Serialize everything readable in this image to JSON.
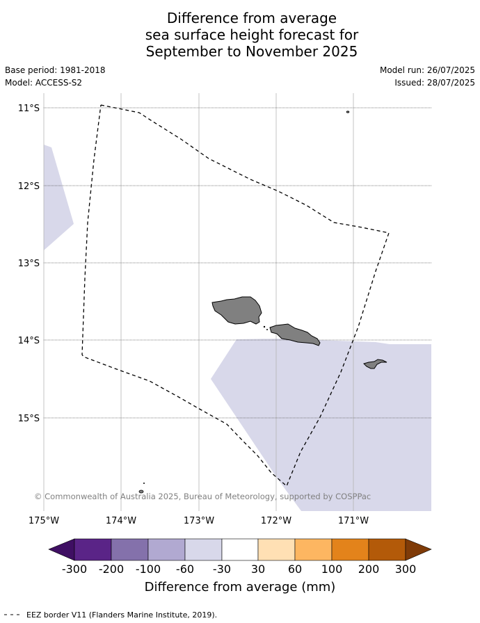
{
  "title": {
    "line1": "Difference from average",
    "line2": "sea surface height forecast for",
    "line3": "September to November 2025"
  },
  "meta": {
    "base_period": "Base period: 1981-2018",
    "model": "Model: ACCESS-S2",
    "model_run": "Model run: 26/07/2025",
    "issued": "Issued: 28/07/2025"
  },
  "map": {
    "lat_labels": [
      "11°S",
      "12°S",
      "13°S",
      "14°S",
      "15°S"
    ],
    "lon_labels": [
      "175°W",
      "174°W",
      "173°W",
      "172°W",
      "171°W"
    ],
    "attribution": "© Commonwealth of Australia 2025, Bureau of Meteorology, supported by COSPPac",
    "colors": {
      "land": "#808080",
      "anomaly_fill": "#d8d8ea",
      "gridline": "#b0b0b0",
      "eez_line": "#000000"
    }
  },
  "colorbar": {
    "title": "Difference from average (mm)",
    "labels": [
      "-300",
      "-200",
      "-100",
      "-60",
      "-30",
      "30",
      "60",
      "100",
      "200",
      "300"
    ],
    "colors": [
      "#3f0f63",
      "#5a2487",
      "#8471ab",
      "#b1a9d1",
      "#d8d8ea",
      "#ffffff",
      "#ffe0b4",
      "#fdb661",
      "#e3831b",
      "#b35a09",
      "#7f3b08"
    ]
  },
  "legend": {
    "eez": "EEZ border V11 (Flanders Marine Institute, 2019)."
  }
}
